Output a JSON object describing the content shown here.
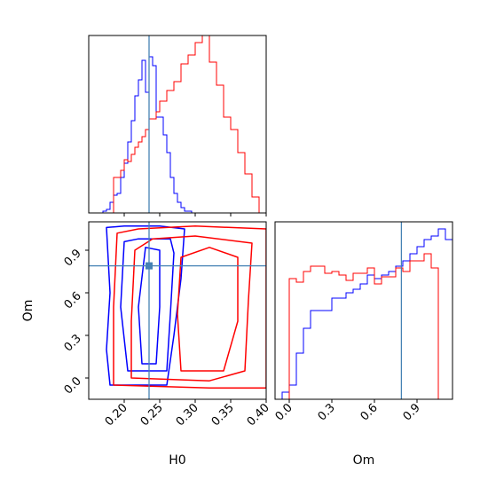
{
  "chart_data": {
    "type": "corner",
    "colors": {
      "series_a": "#ff0000",
      "series_b": "#0000ff",
      "truth": "#4682b4"
    },
    "truth": {
      "H0": 0.235,
      "Om": 0.79
    },
    "panels": [
      {
        "id": "hist_H0",
        "type": "step-histogram",
        "xlim": [
          0.15,
          0.4
        ],
        "ylim": [
          0,
          1.0
        ],
        "x_ticks": [
          0.2,
          0.25,
          0.3,
          0.35,
          0.4
        ],
        "tick_labels_shown": false,
        "series": [
          {
            "color": "#0000ff",
            "bin_start": 0.15,
            "bin_width": 0.005,
            "values": [
              0,
              0,
              0,
              0,
              0.01,
              0.02,
              0.06,
              0.1,
              0.11,
              0.2,
              0.28,
              0.4,
              0.52,
              0.66,
              0.75,
              0.86,
              0.68,
              0.88,
              0.83,
              0.54,
              0.54,
              0.44,
              0.34,
              0.2,
              0.11,
              0.06,
              0.03,
              0.01,
              0.01,
              0,
              0,
              0,
              0,
              0,
              0,
              0,
              0,
              0,
              0,
              0,
              0,
              0,
              0,
              0,
              0,
              0,
              0,
              0,
              0,
              0
            ]
          },
          {
            "color": "#ff0000",
            "bin_start": 0.15,
            "bin_width": 0.005,
            "values": [
              0,
              0,
              0,
              0,
              0,
              0,
              0,
              0.2,
              0.2,
              0.24,
              0.3,
              0.29,
              0.33,
              0.37,
              0.4,
              0.43,
              0.47,
              0.53,
              0.53,
              0.57,
              0.63,
              0.63,
              0.69,
              0.69,
              0.74,
              0.74,
              0.84,
              0.84,
              0.89,
              0.89,
              0.96,
              0.96,
              1.0,
              1.0,
              0.85,
              0.85,
              0.72,
              0.72,
              0.54,
              0.54,
              0.47,
              0.47,
              0.34,
              0.34,
              0.22,
              0.22,
              0.09,
              0.09,
              0,
              0
            ]
          }
        ]
      },
      {
        "id": "hist_Om",
        "type": "step-histogram",
        "xlim": [
          -0.1,
          1.15
        ],
        "ylim": [
          0,
          1.0
        ],
        "x_ticks": [
          0.0,
          0.3,
          0.6,
          0.9
        ],
        "x_tick_labels": [
          "0.0",
          "0.3",
          "0.6",
          "0.9"
        ],
        "xlabel": "Om",
        "series": [
          {
            "color": "#0000ff",
            "bin_start": -0.05,
            "bin_width": 0.05,
            "values": [
              0.04,
              0.08,
              0.26,
              0.4,
              0.5,
              0.5,
              0.5,
              0.57,
              0.57,
              0.6,
              0.62,
              0.65,
              0.7,
              0.68,
              0.7,
              0.72,
              0.75,
              0.78,
              0.82,
              0.86,
              0.9,
              0.92,
              0.96,
              0.9,
              0.38,
              0.04
            ]
          },
          {
            "color": "#ff0000",
            "bin_start": 0.0,
            "bin_width": 0.05,
            "values": [
              0.68,
              0.66,
              0.72,
              0.75,
              0.75,
              0.71,
              0.72,
              0.7,
              0.67,
              0.71,
              0.71,
              0.74,
              0.65,
              0.69,
              0.69,
              0.74,
              0.72,
              0.78,
              0.78,
              0.82,
              0.74,
              0.0
            ]
          }
        ]
      },
      {
        "id": "contour_H0_Om",
        "type": "contour",
        "xlim": [
          0.15,
          0.4
        ],
        "ylim": [
          -0.15,
          1.1
        ],
        "x_ticks": [
          0.2,
          0.25,
          0.3,
          0.35,
          0.4
        ],
        "x_tick_labels": [
          "0.20",
          "0.25",
          "0.30",
          "0.35",
          "0.40"
        ],
        "y_ticks": [
          0.0,
          0.3,
          0.6,
          0.9
        ],
        "y_tick_labels": [
          "0.0",
          "0.3",
          "0.6",
          "0.9"
        ],
        "xlabel": "H0",
        "ylabel": "Om",
        "series": [
          {
            "color": "#0000ff",
            "levels": [
              [
                [
                  0.18,
                  -0.05
                ],
                [
                  0.26,
                  -0.05
                ],
                [
                  0.27,
                  0.3
                ],
                [
                  0.28,
                  0.7
                ],
                [
                  0.285,
                  1.05
                ],
                [
                  0.25,
                  1.07
                ],
                [
                  0.2,
                  1.07
                ],
                [
                  0.175,
                  1.06
                ],
                [
                  0.18,
                  0.6
                ],
                [
                  0.175,
                  0.2
                ]
              ],
              [
                [
                  0.205,
                  0.05
                ],
                [
                  0.26,
                  0.05
                ],
                [
                  0.265,
                  0.45
                ],
                [
                  0.27,
                  0.88
                ],
                [
                  0.265,
                  0.98
                ],
                [
                  0.22,
                  0.98
                ],
                [
                  0.2,
                  0.96
                ],
                [
                  0.195,
                  0.5
                ]
              ],
              [
                [
                  0.225,
                  0.1
                ],
                [
                  0.245,
                  0.1
                ],
                [
                  0.25,
                  0.5
                ],
                [
                  0.25,
                  0.9
                ],
                [
                  0.23,
                  0.92
                ],
                [
                  0.22,
                  0.5
                ]
              ]
            ]
          },
          {
            "color": "#ff0000",
            "levels": [
              [
                [
                  0.185,
                  -0.05
                ],
                [
                  0.32,
                  -0.07
                ],
                [
                  0.4,
                  -0.07
                ],
                [
                  0.4,
                  1.05
                ],
                [
                  0.3,
                  1.07
                ],
                [
                  0.22,
                  1.05
                ],
                [
                  0.19,
                  1.02
                ],
                [
                  0.185,
                  0.5
                ]
              ],
              [
                [
                  0.21,
                  0.0
                ],
                [
                  0.32,
                  -0.02
                ],
                [
                  0.37,
                  0.05
                ],
                [
                  0.375,
                  0.55
                ],
                [
                  0.38,
                  0.95
                ],
                [
                  0.3,
                  1.0
                ],
                [
                  0.24,
                  0.98
                ],
                [
                  0.215,
                  0.9
                ],
                [
                  0.21,
                  0.4
                ]
              ],
              [
                [
                  0.28,
                  0.05
                ],
                [
                  0.34,
                  0.05
                ],
                [
                  0.36,
                  0.4
                ],
                [
                  0.36,
                  0.85
                ],
                [
                  0.32,
                  0.92
                ],
                [
                  0.28,
                  0.85
                ],
                [
                  0.275,
                  0.45
                ]
              ]
            ]
          }
        ]
      }
    ]
  }
}
